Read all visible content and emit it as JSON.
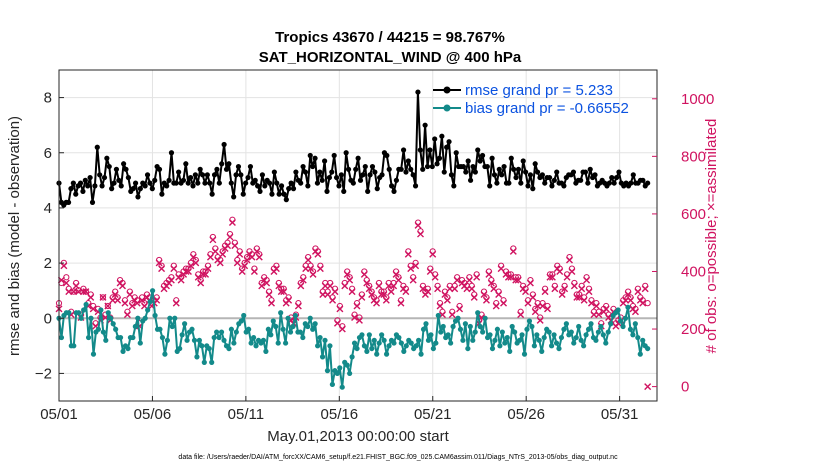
{
  "chart_data": {
    "type": "line",
    "title_line1": "Tropics 43670 / 44215 = 98.767%",
    "title_line2": "SAT_HORIZONTAL_WIND @ 400 hPa",
    "xlabel": "May.01,2013 00:00:00 start",
    "ylabel_left": "rmse and bias (model - observation)",
    "ylabel_right": "# of obs: o=possible; ×=assimilated",
    "footer": "data file: /Users/raeder/DAI/ATM_forcXX/CAM6_setup/f.e21.FHIST_BGC.f09_025.CAM6assim.011/Diags_NTrS_2013-05/obs_diag_output.nc",
    "x_range_days": [
      0,
      32
    ],
    "x_ticks": [
      {
        "day": 0,
        "label": "05/01"
      },
      {
        "day": 5,
        "label": "05/06"
      },
      {
        "day": 10,
        "label": "05/11"
      },
      {
        "day": 15,
        "label": "05/16"
      },
      {
        "day": 20,
        "label": "05/21"
      },
      {
        "day": 25,
        "label": "05/26"
      },
      {
        "day": 30,
        "label": "05/31"
      }
    ],
    "left_ylim": [
      -3,
      9
    ],
    "left_ticks": [
      -2,
      0,
      2,
      4,
      6,
      8
    ],
    "right_ylim": [
      -50,
      1100
    ],
    "right_ticks": [
      0,
      200,
      400,
      600,
      800,
      1000
    ],
    "zero_line": 0,
    "series": [
      {
        "name": "rmse",
        "legend": "rmse grand pr = 5.233",
        "color": "#000000",
        "axis": "left",
        "values": [
          4.9,
          4.2,
          4.1,
          4.2,
          4.2,
          4.7,
          4.9,
          4.5,
          4.8,
          4.9,
          4.6,
          5.0,
          4.8,
          5.1,
          4.2,
          4.8,
          6.2,
          5.2,
          4.8,
          5.1,
          5.8,
          5.5,
          4.7,
          4.9,
          5.4,
          5.0,
          4.8,
          5.6,
          5.4,
          5.1,
          4.6,
          4.7,
          4.9,
          4.4,
          4.7,
          4.9,
          4.8,
          5.2,
          4.9,
          4.7,
          5.0,
          5.5,
          5.4,
          4.5,
          4.9,
          4.8,
          5.0,
          6.0,
          4.9,
          4.9,
          5.3,
          4.9,
          5.0,
          5.6,
          4.9,
          5.1,
          4.8,
          5.2,
          4.9,
          5.4,
          5.2,
          4.9,
          5.2,
          4.9,
          4.5,
          5.2,
          5.4,
          4.9,
          5.6,
          6.3,
          5.4,
          5.6,
          4.9,
          4.4,
          5.2,
          5.5,
          5.2,
          4.5,
          4.9,
          5.1,
          5.5,
          4.9,
          5.0,
          4.8,
          4.6,
          5.2,
          4.8,
          5.0,
          4.9,
          4.5,
          5.3,
          4.9,
          4.5,
          4.8,
          4.5,
          4.3,
          4.7,
          4.9,
          4.7,
          5.3,
          5.0,
          4.9,
          5.5,
          5.3,
          4.8,
          5.9,
          5.5,
          5.8,
          4.9,
          5.3,
          5.0,
          5.7,
          4.6,
          5.1,
          5.3,
          5.9,
          5.1,
          4.8,
          5.2,
          4.6,
          6.0,
          5.4,
          5.0,
          4.9,
          5.4,
          5.8,
          5.0,
          5.2,
          5.5,
          4.6,
          5.2,
          5.5,
          5.3,
          4.7,
          5.1,
          5.2,
          6.0,
          5.9,
          5.4,
          4.8,
          4.6,
          5.0,
          5.4,
          5.4,
          6.1,
          5.3,
          5.7,
          5.4,
          5.2,
          4.8,
          8.2,
          6.1,
          5.4,
          7.0,
          5.5,
          6.1,
          5.5,
          6.5,
          5.6,
          5.8,
          6.6,
          5.3,
          6.2,
          6.4,
          5.2,
          4.8,
          6.0,
          5.5,
          5.5,
          5.5,
          5.3,
          5.7,
          5.0,
          5.5,
          5.3,
          6.1,
          5.7,
          5.9,
          5.5,
          5.5,
          4.8,
          5.8,
          5.2,
          4.9,
          5.4,
          5.2,
          5.5,
          4.9,
          4.9,
          5.8,
          5.4,
          5.1,
          5.4,
          4.9,
          5.7,
          5.3,
          4.8,
          5.2,
          4.7,
          5.6,
          5.3,
          5.1,
          5.2,
          4.9,
          5.1,
          5.1,
          4.8,
          5.0,
          5.3,
          4.9,
          4.9,
          4.8,
          5.1,
          5.2,
          5.2,
          5.3,
          4.9,
          5.0,
          5.0,
          5.3,
          5.3,
          4.9,
          5.4,
          5.1,
          5.2,
          4.8,
          4.9,
          5.0,
          4.9,
          4.8,
          4.9,
          5.1,
          4.9,
          5.1,
          5.3,
          4.9,
          4.8,
          4.9,
          4.8,
          4.9,
          5.2,
          4.9,
          4.9,
          5.0,
          5.0,
          4.8,
          4.9
        ]
      },
      {
        "name": "bias",
        "legend": "bias grand pr = -0.66552",
        "color": "#138a8a",
        "axis": "left",
        "values": [
          0.0,
          -0.7,
          0.1,
          0.2,
          0.2,
          -1.0,
          -1.0,
          0.2,
          0.2,
          0.0,
          0.3,
          0.5,
          -0.7,
          0.0,
          -1.3,
          -0.5,
          -0.4,
          0.3,
          -0.5,
          -0.8,
          0.2,
          0.0,
          -0.2,
          -0.4,
          -0.7,
          -0.7,
          -1.2,
          -1.0,
          -1.1,
          -0.7,
          -0.7,
          -0.3,
          0.0,
          -0.9,
          -0.1,
          0.0,
          0.3,
          0.6,
          1.0,
          0.1,
          -0.4,
          -0.4,
          -0.7,
          -1.3,
          -0.8,
          0.0,
          -0.3,
          0.0,
          -1.2,
          -1.1,
          -0.6,
          -0.2,
          -0.8,
          -0.5,
          -0.4,
          -0.8,
          -1.4,
          -0.8,
          -1.0,
          -1.6,
          -1.0,
          -1.1,
          -1.6,
          -0.7,
          -0.5,
          -0.7,
          -0.5,
          -0.8,
          -1.0,
          -1.1,
          -0.4,
          -0.9,
          -0.5,
          -0.2,
          -0.1,
          0.1,
          -0.5,
          -0.4,
          -0.9,
          -0.7,
          -1.0,
          -0.8,
          -0.9,
          -0.8,
          -1.2,
          -0.4,
          -0.6,
          -0.1,
          -0.3,
          -0.9,
          0.2,
          -0.4,
          -0.9,
          0.0,
          -0.5,
          -0.3,
          0.1,
          -0.5,
          -0.5,
          -0.7,
          -0.2,
          -0.3,
          0.0,
          -0.4,
          -0.2,
          -1.0,
          -0.7,
          -1.4,
          -0.8,
          -1.9,
          -1.0,
          -2.4,
          -1.9,
          -2.0,
          -1.8,
          -2.5,
          -1.6,
          -1.7,
          -2.0,
          -1.4,
          -0.9,
          -1.1,
          -0.7,
          -0.6,
          -1.0,
          -1.2,
          -0.6,
          -1.1,
          -0.8,
          -1.3,
          -0.9,
          -0.6,
          -0.8,
          -1.3,
          -1.0,
          -0.8,
          -0.9,
          -0.6,
          -0.7,
          -0.9,
          -1.2,
          -1.0,
          -0.8,
          -0.9,
          -1.1,
          -1.0,
          -0.8,
          -1.3,
          -0.4,
          -0.2,
          -0.8,
          -0.6,
          -1.1,
          -0.9,
          0.1,
          -0.5,
          -0.3,
          -0.7,
          -0.6,
          -0.9,
          -0.3,
          -0.1,
          0.0,
          -0.4,
          -0.8,
          -0.2,
          -1.1,
          -0.3,
          -0.8,
          -0.5,
          0.2,
          -0.3,
          -0.5,
          0.0,
          -0.7,
          -0.6,
          -1.1,
          -0.8,
          -0.4,
          -1.0,
          -0.5,
          -0.9,
          -0.7,
          -1.2,
          -0.3,
          -0.5,
          -0.9,
          -0.8,
          -0.6,
          -1.3,
          -0.4,
          -0.1,
          -0.3,
          -1.0,
          -0.6,
          -0.8,
          -1.2,
          -0.7,
          -0.4,
          -0.5,
          -1.0,
          -0.6,
          -0.9,
          -1.1,
          -0.7,
          -0.4,
          -0.2,
          -0.6,
          -0.5,
          -0.9,
          -0.7,
          -0.3,
          -0.8,
          -1.0,
          -0.6,
          -0.4,
          -0.2,
          -0.7,
          -0.8,
          -0.5,
          -0.3,
          -0.6,
          -0.9,
          -0.5,
          -0.2,
          0.1,
          0.2,
          0.3,
          -0.1,
          -0.3,
          0.0,
          0.4,
          -0.4,
          -0.6,
          -0.2,
          -0.7,
          -1.3,
          -0.8,
          -1.0,
          -1.1
        ]
      }
    ],
    "obs_possible": {
      "name": "possible",
      "marker": "o",
      "color": "#d01360",
      "axis": "right",
      "values": [
        290,
        360,
        430,
        380,
        340,
        260,
        330,
        360,
        335,
        250,
        340,
        330,
        290,
        320,
        280,
        220,
        270,
        240,
        310,
        250,
        280,
        240,
        310,
        330,
        310,
        370,
        360,
        300,
        260,
        330,
        290,
        310,
        300,
        220,
        310,
        290,
        320,
        310,
        290,
        300,
        310,
        440,
        420,
        350,
        360,
        370,
        380,
        420,
        300,
        390,
        380,
        400,
        410,
        410,
        430,
        460,
        440,
        390,
        370,
        400,
        400,
        420,
        460,
        520,
        480,
        450,
        440,
        470,
        490,
        500,
        530,
        580,
        500,
        440,
        470,
        410,
        430,
        450,
        470,
        460,
        410,
        480,
        460,
        360,
        380,
        370,
        330,
        300,
        410,
        420,
        360,
        340,
        340,
        300,
        310,
        240,
        230,
        250,
        290,
        360,
        380,
        420,
        450,
        420,
        400,
        480,
        470,
        420,
        330,
        360,
        330,
        360,
        310,
        340,
        230,
        280,
        210,
        360,
        400,
        380,
        340,
        250,
        290,
        240,
        320,
        400,
        370,
        350,
        330,
        310,
        300,
        360,
        330,
        330,
        310,
        360,
        340,
        360,
        400,
        380,
        300,
        350,
        340,
        470,
        420,
        380,
        430,
        570,
        540,
        350,
        330,
        340,
        410,
        470,
        390,
        350,
        290,
        260,
        330,
        310,
        350,
        260,
        350,
        380,
        280,
        370,
        360,
        350,
        380,
        350,
        320,
        390,
        230,
        250,
        330,
        310,
        400,
        370,
        350,
        290,
        330,
        420,
        300,
        400,
        390,
        390,
        480,
        380,
        380,
        260,
        350,
        340,
        300,
        370,
        320,
        270,
        290,
        240,
        290,
        340,
        280,
        390,
        390,
        350,
        420,
        410,
        330,
        350,
        390,
        450,
        410,
        360,
        320,
        320,
        350,
        310,
        380,
        340,
        300,
        260,
        290,
        260,
        220,
        270,
        280,
        250,
        240,
        270,
        220,
        230,
        240,
        300,
        310,
        330,
        310,
        280,
        270,
        340,
        310,
        300,
        350,
        290
      ]
    },
    "obs_assimilated": {
      "name": "assimilated",
      "marker": "x",
      "color": "#d01360",
      "axis": "right",
      "values": [
        270,
        370,
        420,
        360,
        330,
        250,
        330,
        350,
        330,
        240,
        330,
        330,
        280,
        310,
        270,
        210,
        260,
        230,
        310,
        240,
        280,
        230,
        300,
        320,
        300,
        360,
        350,
        290,
        250,
        320,
        280,
        300,
        290,
        210,
        300,
        280,
        310,
        300,
        280,
        290,
        300,
        430,
        410,
        340,
        350,
        360,
        370,
        410,
        290,
        380,
        370,
        390,
        400,
        400,
        420,
        450,
        430,
        380,
        360,
        390,
        390,
        410,
        450,
        510,
        470,
        440,
        430,
        460,
        480,
        490,
        520,
        570,
        490,
        430,
        460,
        400,
        420,
        440,
        460,
        450,
        400,
        470,
        450,
        350,
        370,
        360,
        320,
        290,
        400,
        410,
        350,
        330,
        330,
        290,
        300,
        230,
        220,
        240,
        280,
        350,
        370,
        410,
        440,
        410,
        390,
        470,
        460,
        410,
        320,
        350,
        320,
        350,
        300,
        330,
        220,
        270,
        200,
        350,
        390,
        370,
        330,
        240,
        280,
        230,
        310,
        390,
        360,
        340,
        320,
        300,
        290,
        350,
        320,
        320,
        300,
        350,
        330,
        350,
        390,
        370,
        290,
        340,
        330,
        460,
        410,
        370,
        420,
        560,
        530,
        340,
        320,
        330,
        400,
        460,
        380,
        340,
        280,
        250,
        320,
        300,
        340,
        250,
        340,
        370,
        270,
        360,
        350,
        340,
        370,
        340,
        310,
        380,
        220,
        240,
        320,
        300,
        390,
        360,
        340,
        280,
        320,
        410,
        290,
        390,
        380,
        380,
        470,
        370,
        370,
        250,
        340,
        330,
        290,
        360,
        310,
        260,
        280,
        230,
        280,
        330,
        270,
        380,
        380,
        340,
        410,
        400,
        320,
        340,
        380,
        440,
        400,
        350,
        310,
        310,
        340,
        300,
        370,
        330,
        290,
        250,
        280,
        250,
        210,
        260,
        270,
        240,
        230,
        260,
        210,
        220,
        230,
        290,
        300,
        320,
        300,
        270,
        260,
        330,
        300,
        290,
        340,
        0
      ]
    }
  }
}
